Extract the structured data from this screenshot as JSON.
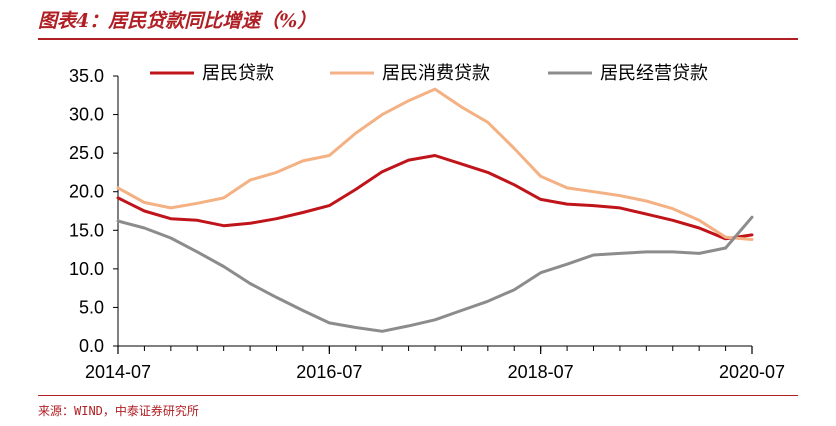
{
  "header": {
    "title": "图表4：居民贷款同比增速（%）",
    "source": "来源：WIND，中泰证券研究所"
  },
  "chart_data": {
    "type": "line",
    "title": "图表4：居民贷款同比增速（%）",
    "xlabel": "",
    "ylabel": "",
    "ylim": [
      0,
      35
    ],
    "y_ticks": [
      "0.0",
      "5.0",
      "10.0",
      "15.0",
      "20.0",
      "25.0",
      "30.0",
      "35.0"
    ],
    "x_tick_labels": [
      "2014-07",
      "2016-07",
      "2018-07",
      "2020-07"
    ],
    "legend_position": "top",
    "x": [
      "2014-07",
      "2014-10",
      "2015-01",
      "2015-04",
      "2015-07",
      "2015-10",
      "2016-01",
      "2016-04",
      "2016-07",
      "2016-10",
      "2017-01",
      "2017-04",
      "2017-07",
      "2017-10",
      "2018-01",
      "2018-04",
      "2018-07",
      "2018-10",
      "2019-01",
      "2019-04",
      "2019-07",
      "2019-10",
      "2020-01",
      "2020-04",
      "2020-07"
    ],
    "series": [
      {
        "name": "居民贷款",
        "color": "#c0141b",
        "values": [
          19.2,
          17.5,
          16.5,
          16.3,
          15.6,
          15.9,
          16.5,
          17.3,
          18.2,
          20.3,
          22.6,
          24.1,
          24.7,
          23.6,
          22.5,
          20.9,
          19.0,
          18.4,
          18.2,
          17.9,
          17.1,
          16.3,
          15.3,
          13.9,
          14.4
        ]
      },
      {
        "name": "居民消费贷款",
        "color": "#f4b183",
        "values": [
          20.5,
          18.6,
          17.9,
          18.5,
          19.2,
          21.5,
          22.5,
          24.0,
          24.7,
          27.6,
          30.0,
          31.8,
          33.3,
          31.0,
          29.0,
          25.6,
          22.0,
          20.5,
          20.0,
          19.5,
          18.8,
          17.8,
          16.3,
          14.1,
          13.8
        ]
      },
      {
        "name": "居民经营贷款",
        "color": "#8c8c8c",
        "values": [
          16.2,
          15.3,
          14.0,
          12.2,
          10.3,
          8.1,
          6.3,
          4.6,
          3.0,
          2.4,
          1.9,
          2.6,
          3.4,
          4.6,
          5.8,
          7.3,
          9.5,
          10.6,
          11.8,
          12.0,
          12.2,
          12.2,
          12.0,
          12.7,
          16.7
        ]
      }
    ]
  }
}
